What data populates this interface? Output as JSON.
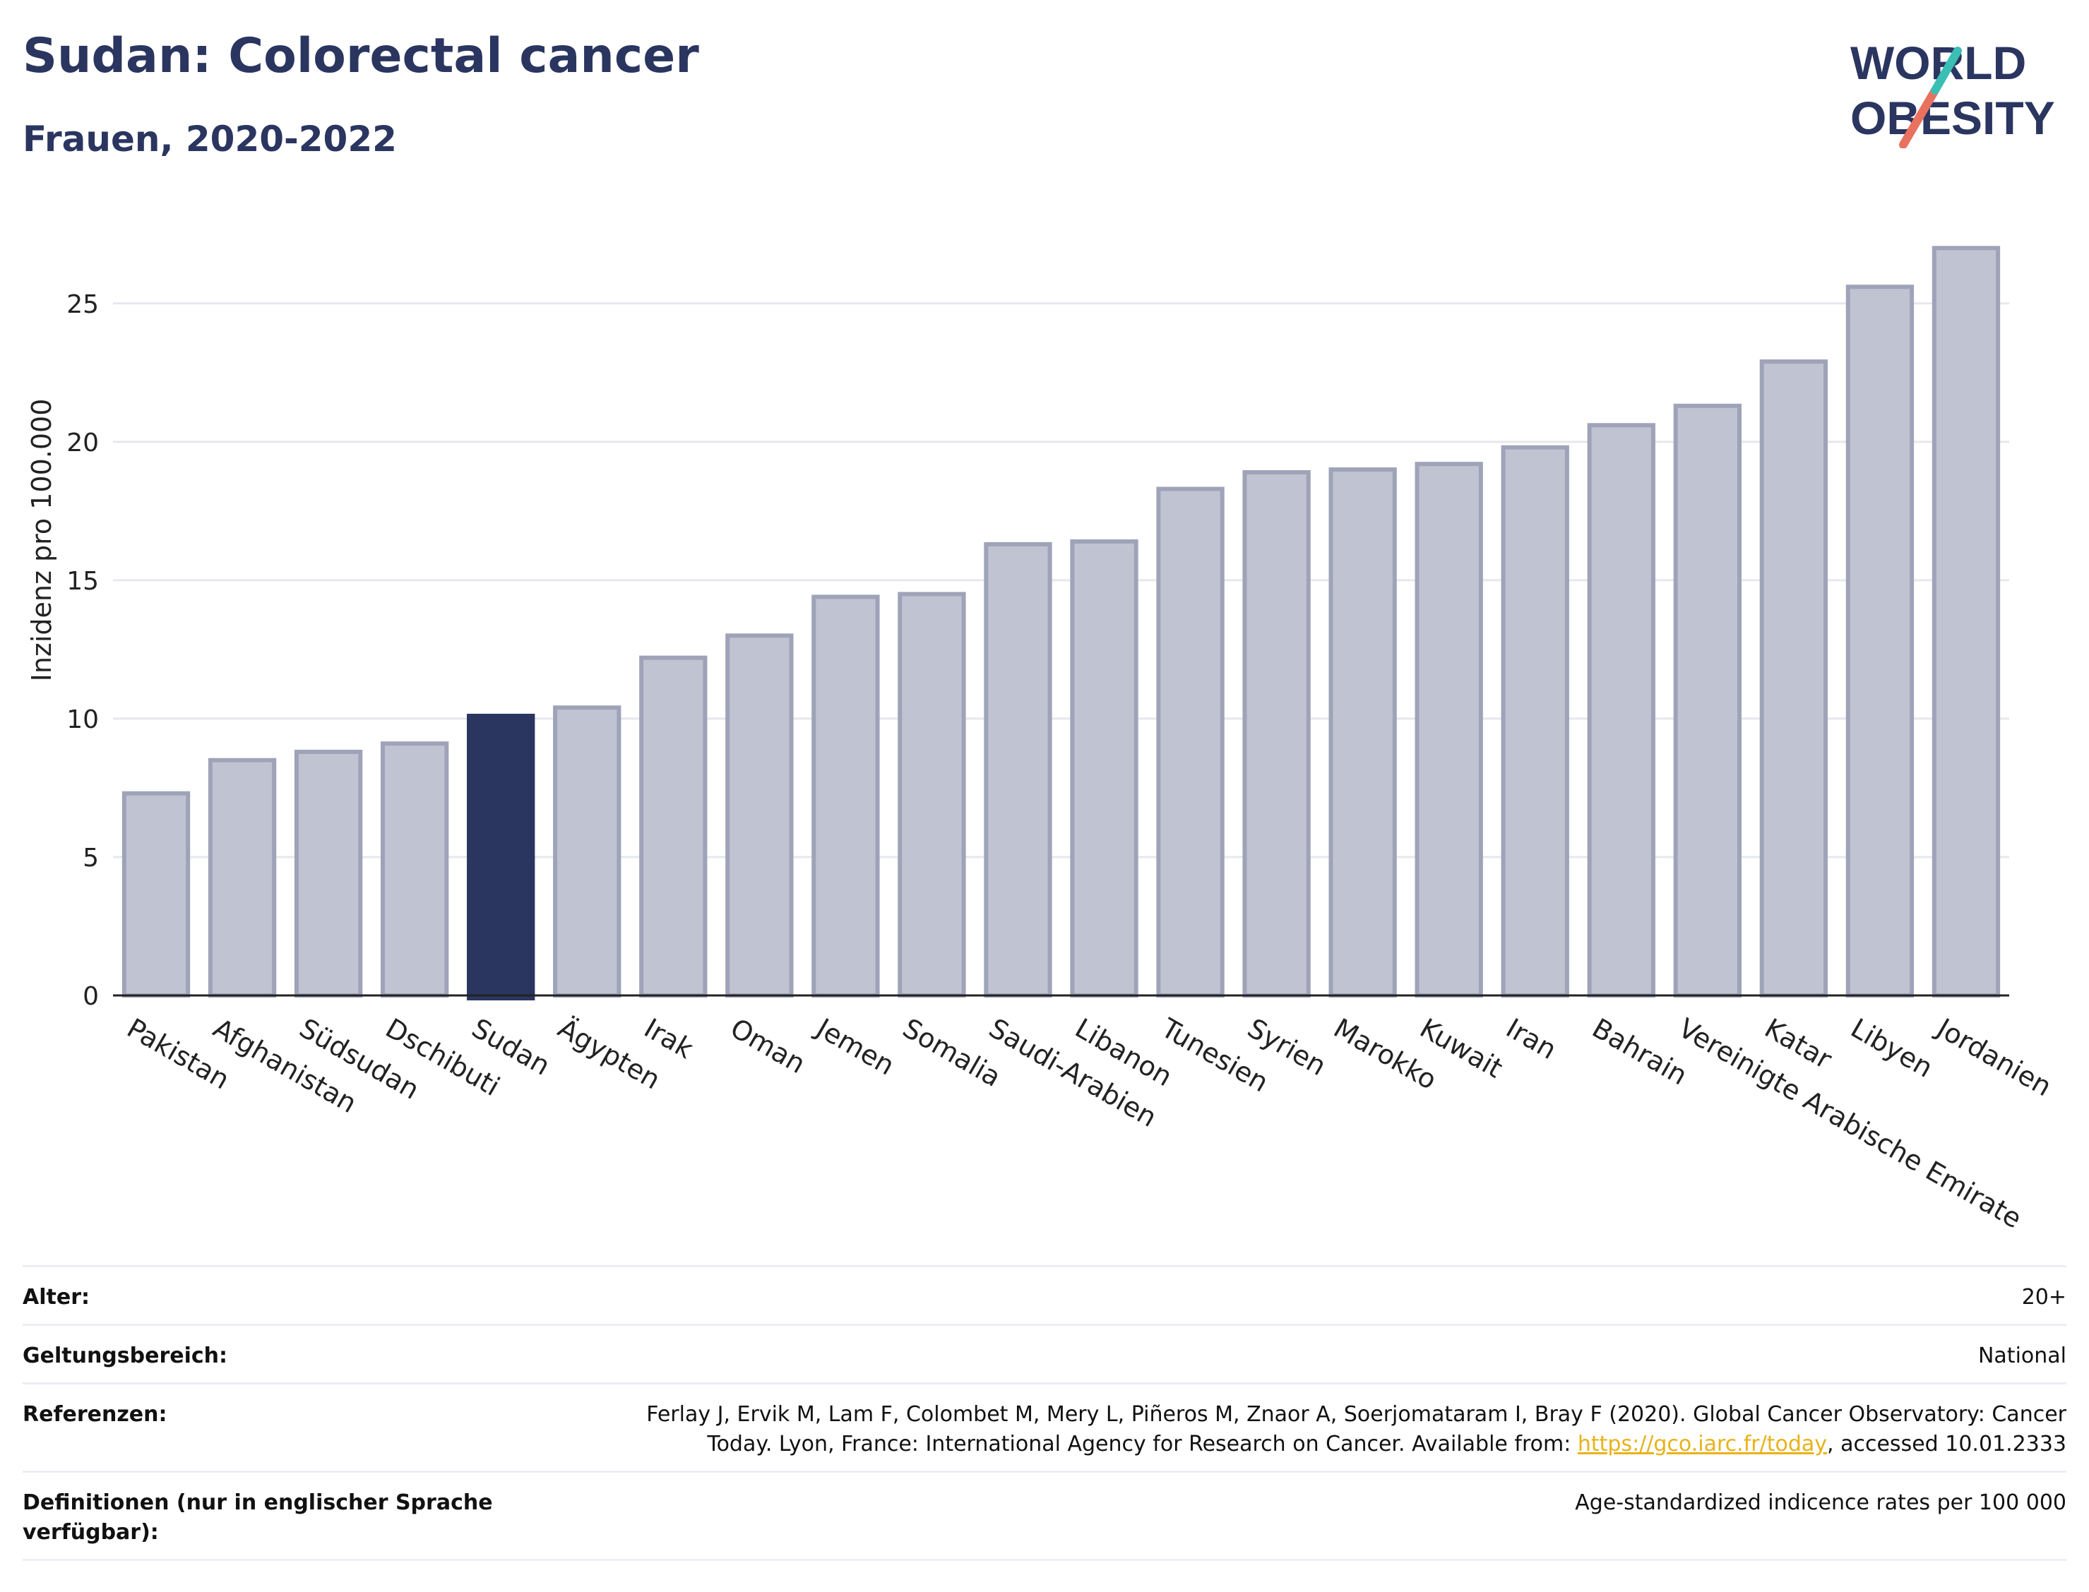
{
  "header": {
    "title": "Sudan: Colorectal cancer",
    "subtitle": "Frauen, 2020-2022"
  },
  "logo": {
    "line1": "WORLD",
    "line2": "OBESITY"
  },
  "colors": {
    "highlight": "#2a3560",
    "bar": "#c0c3d1",
    "bar_border": "#9ea3b8",
    "title": "#2a3560",
    "link": "#e8b21a"
  },
  "chart_data": {
    "type": "bar",
    "ylabel": "Inzidenz pro 100.000",
    "ylim": [
      0,
      27.8
    ],
    "yticks": [
      0,
      5,
      10,
      15,
      20,
      25
    ],
    "grid": true,
    "highlight": "Sudan",
    "categories": [
      "Pakistan",
      "Afghanistan",
      "Südsudan",
      "Dschibuti",
      "Sudan",
      "Ägypten",
      "Irak",
      "Oman",
      "Jemen",
      "Somalia",
      "Saudi-Arabien",
      "Libanon",
      "Tunesien",
      "Syrien",
      "Marokko",
      "Kuwait",
      "Iran",
      "Bahrain",
      "Vereinigte Arabische Emirate",
      "Katar",
      "Libyen",
      "Jordanien"
    ],
    "values": [
      7.3,
      8.5,
      8.8,
      9.1,
      10.1,
      10.4,
      12.2,
      13.0,
      14.4,
      14.5,
      16.3,
      16.4,
      18.3,
      18.9,
      19.0,
      19.2,
      19.8,
      20.6,
      21.3,
      22.9,
      25.6,
      27.0
    ]
  },
  "meta": [
    {
      "label": "Alter:",
      "value": "20+"
    },
    {
      "label": "Geltungsbereich:",
      "value": "National"
    },
    {
      "label": "Referenzen:",
      "value_pre": "Ferlay J, Ervik M, Lam F, Colombet M, Mery L, Piñeros M, Znaor A, Soerjomataram I, Bray F (2020). Global Cancer Observatory: Cancer Today. Lyon, France: International Agency for Research on Cancer. Available from: ",
      "link": "https://gco.iarc.fr/today",
      "value_post": ", accessed 10.01.2333"
    },
    {
      "label": "Definitionen (nur in englischer Sprache verfügbar):",
      "value": "Age-standardized indicence rates per 100 000"
    }
  ]
}
